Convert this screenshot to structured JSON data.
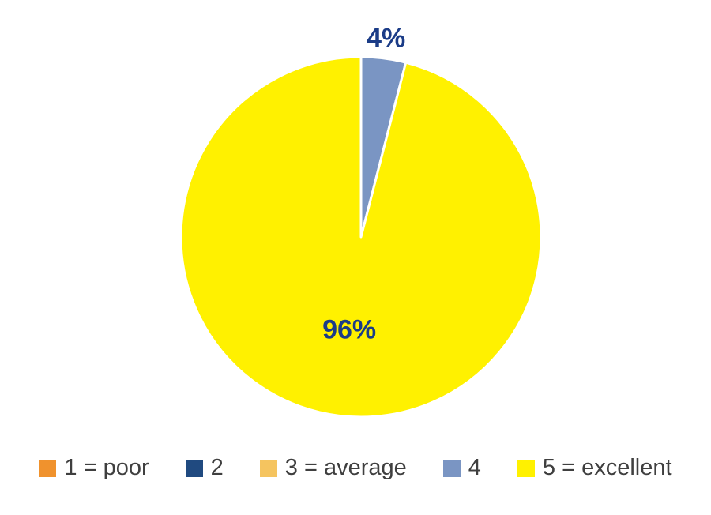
{
  "page": {
    "background": "#ffffff"
  },
  "chart_data": {
    "type": "pie",
    "title": "",
    "categories": [
      "1 = poor",
      "2",
      "3 = average",
      "4",
      "5 = excellent"
    ],
    "values": [
      0,
      0,
      0,
      4,
      96
    ],
    "unit": "%",
    "colors": [
      "#F0922D",
      "#204A80",
      "#F5C45F",
      "#7A95C3",
      "#FFF100"
    ],
    "slice_border_color": "#FFFFFF",
    "data_label_color": "#1B3C87",
    "start_angle_deg": 0,
    "direction": "clockwise",
    "data_labels": [
      {
        "category": "4",
        "text": "4%",
        "placement": "outside"
      },
      {
        "category": "5 = excellent",
        "text": "96%",
        "placement": "inside"
      }
    ],
    "legend": {
      "position": "bottom",
      "text_color": "#3F3F3F",
      "items": [
        "1 = poor",
        "2",
        "3 = average",
        "4",
        "5 = excellent"
      ]
    }
  }
}
